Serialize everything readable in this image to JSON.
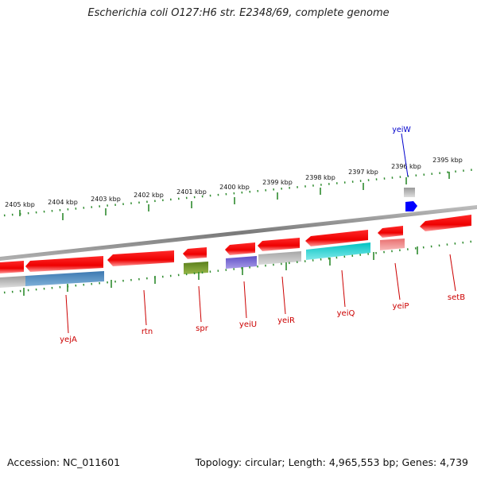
{
  "title": "Escherichia coli O127:H6 str. E2348/69, complete genome",
  "footer": {
    "accession": "Accession: NC_011601",
    "stats": "Topology: circular; Length: 4,965,553 bp; Genes: 4,739"
  },
  "colors": {
    "backbone": "#888888",
    "tick": "#2e8b2e",
    "gene_label": "#cc0000",
    "gene_line": "#cc0000",
    "cds_forward": "#ff0000",
    "cds_reverse": "#ff0000",
    "top_gene_label": "#0000cc"
  },
  "kbp_ticks": [
    "2405 kbp",
    "2404 kbp",
    "2403 kbp",
    "2402 kbp",
    "2401 kbp",
    "2400 kbp",
    "2399 kbp",
    "2398 kbp",
    "2397 kbp",
    "2396 kbp",
    "2395 kbp"
  ],
  "genes": [
    {
      "name": "yejA",
      "feature_color": "#4682b4"
    },
    {
      "name": "rtn",
      "feature_color": "#ff0000"
    },
    {
      "name": "spr",
      "feature_color": "#6b8e23"
    },
    {
      "name": "yeiU",
      "feature_color": "#6a5acd"
    },
    {
      "name": "yeiR",
      "feature_color": "#b0b0b0"
    },
    {
      "name": "yeiQ",
      "feature_color": "#00ced1"
    },
    {
      "name": "yeiP",
      "feature_color": "#f08080"
    },
    {
      "name": "setB",
      "feature_color": "#ff0000"
    }
  ],
  "top_genes": [
    {
      "name": "yeiW",
      "feature_color": "#0000ff"
    }
  ]
}
